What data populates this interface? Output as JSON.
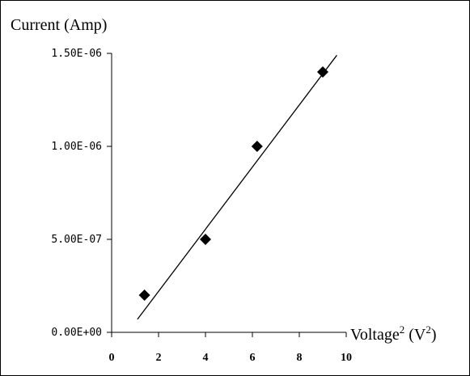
{
  "chart_data": {
    "type": "scatter",
    "ylabel": "Current (Amp)",
    "xlabel_main": "Voltage",
    "xlabel_sup": "2",
    "xlabel_unit_open": " (V",
    "xlabel_unit_sup": "2",
    "xlabel_unit_close": ")",
    "xlim": [
      0,
      10
    ],
    "ylim": [
      0,
      1.5e-06
    ],
    "x_ticks": [
      0,
      2,
      4,
      6,
      8,
      10
    ],
    "x_tick_labels": [
      "0",
      "2",
      "4",
      "6",
      "8",
      "10"
    ],
    "y_ticks": [
      0,
      5e-07,
      1e-06,
      1.5e-06
    ],
    "y_tick_labels": [
      "0.00E+00",
      "5.00E-07",
      "1.00E-06",
      "1.50E-06"
    ],
    "grid": false,
    "points": [
      {
        "x": 1.4,
        "y": 2e-07
      },
      {
        "x": 4.0,
        "y": 5e-07
      },
      {
        "x": 6.2,
        "y": 1e-06
      },
      {
        "x": 9.0,
        "y": 1.4e-06
      }
    ],
    "trendline": {
      "x": [
        1.1,
        9.6
      ],
      "y": [
        7e-08,
        1.49e-06
      ]
    },
    "marker": "diamond",
    "colors": {
      "marker": "#000000",
      "line": "#000000",
      "axis": "#000000"
    }
  }
}
